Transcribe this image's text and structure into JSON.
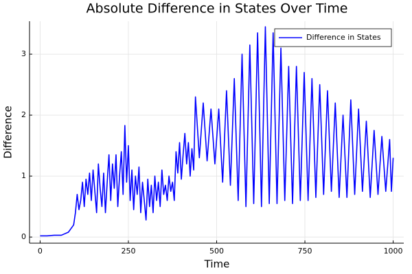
{
  "chart_data": {
    "type": "line",
    "title": "Absolute Difference in States Over Time",
    "x_label": "Time",
    "y_label": "Difference",
    "xlim": [
      -30,
      1030
    ],
    "ylim": [
      -0.1,
      3.54
    ],
    "xticks": [
      0,
      250,
      500,
      750,
      1000
    ],
    "yticks": [
      0,
      1,
      2,
      3
    ],
    "grid": true,
    "legend": "top-right",
    "x": [
      0,
      20,
      40,
      60,
      80,
      95,
      100,
      105,
      110,
      115,
      120,
      125,
      130,
      135,
      140,
      145,
      150,
      155,
      160,
      165,
      170,
      175,
      180,
      185,
      190,
      195,
      200,
      205,
      210,
      215,
      220,
      225,
      230,
      235,
      240,
      245,
      250,
      255,
      260,
      265,
      270,
      275,
      280,
      285,
      290,
      295,
      300,
      305,
      310,
      315,
      320,
      325,
      330,
      335,
      340,
      345,
      350,
      355,
      360,
      365,
      370,
      375,
      380,
      385,
      390,
      395,
      400,
      405,
      410,
      415,
      420,
      425,
      430,
      435,
      440,
      451,
      462,
      473,
      484,
      495,
      506,
      517,
      528,
      539,
      550,
      561,
      572,
      583,
      594,
      605,
      616,
      627,
      638,
      649,
      660,
      671,
      682,
      693,
      704,
      715,
      726,
      737,
      748,
      759,
      770,
      781,
      792,
      803,
      814,
      825,
      836,
      847,
      858,
      869,
      880,
      891,
      902,
      913,
      924,
      935,
      946,
      957,
      968,
      979,
      990,
      995,
      1000
    ],
    "series": [
      {
        "name": "Difference in States",
        "color": "#0000ff",
        "values": [
          0.02,
          0.02,
          0.03,
          0.03,
          0.08,
          0.2,
          0.4,
          0.7,
          0.45,
          0.6,
          0.9,
          0.5,
          0.95,
          0.7,
          1.05,
          0.6,
          1.1,
          0.75,
          0.4,
          1.2,
          0.8,
          0.5,
          1.05,
          0.4,
          0.9,
          1.35,
          0.6,
          1.2,
          0.8,
          1.35,
          0.5,
          1.0,
          1.4,
          0.7,
          1.83,
          0.9,
          1.5,
          0.6,
          1.1,
          0.45,
          1.0,
          0.7,
          1.15,
          0.4,
          0.9,
          0.6,
          0.28,
          0.95,
          0.5,
          0.85,
          0.4,
          1.0,
          0.6,
          0.9,
          0.5,
          1.1,
          0.7,
          0.85,
          0.6,
          1.0,
          0.75,
          0.9,
          0.6,
          1.4,
          1.05,
          1.55,
          0.95,
          1.35,
          1.7,
          1.2,
          1.55,
          1.0,
          1.45,
          1.1,
          2.3,
          1.3,
          2.2,
          1.25,
          2.1,
          1.2,
          2.1,
          0.9,
          2.4,
          0.85,
          2.6,
          0.6,
          3.0,
          0.5,
          3.15,
          0.55,
          3.35,
          0.5,
          3.45,
          0.55,
          3.35,
          0.55,
          3.1,
          0.6,
          2.8,
          0.55,
          2.8,
          0.6,
          2.7,
          0.6,
          2.6,
          0.65,
          2.5,
          0.7,
          2.4,
          0.75,
          2.2,
          0.65,
          2.0,
          0.65,
          2.25,
          0.7,
          2.1,
          0.75,
          1.9,
          0.65,
          1.75,
          0.7,
          1.65,
          0.75,
          1.6,
          0.75,
          1.3
        ]
      }
    ]
  }
}
